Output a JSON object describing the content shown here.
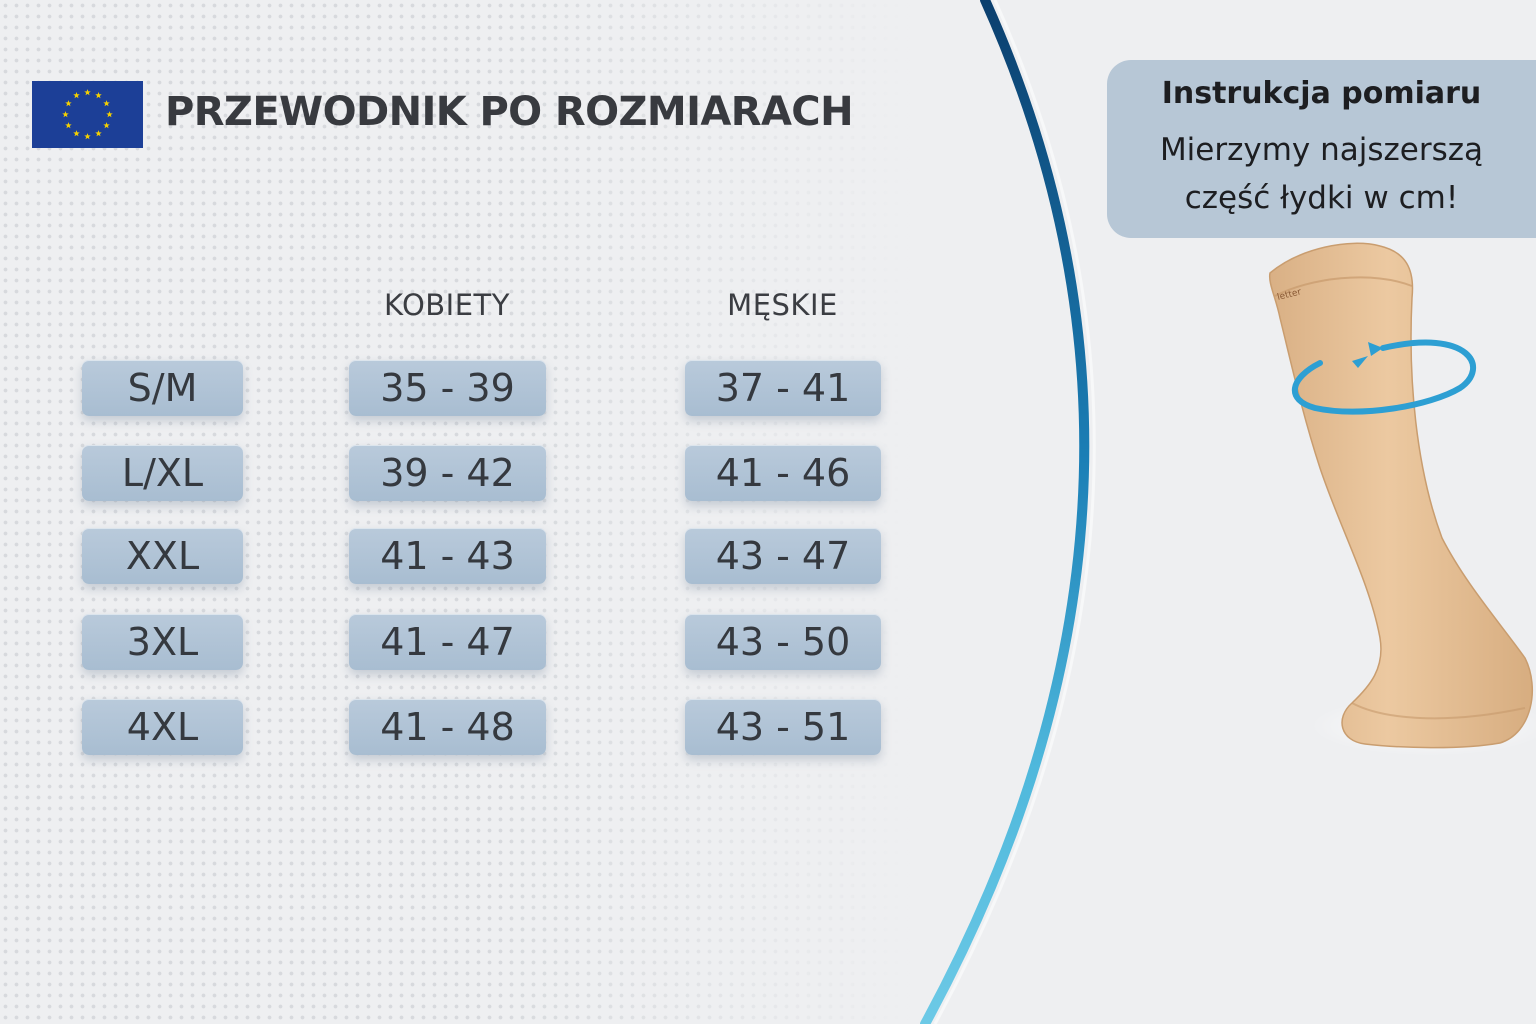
{
  "guide": {
    "title": "PRZEWODNIK PO ROZMIARACH",
    "women_header": "KOBIETY",
    "men_header": "MĘSKIE",
    "rows": [
      {
        "size": "S/M",
        "women": "35 - 39",
        "men": "37 - 41"
      },
      {
        "size": "L/XL",
        "women": "39 - 42",
        "men": "41 - 46"
      },
      {
        "size": "XXL",
        "women": "41 - 43",
        "men": "43 - 47"
      },
      {
        "size": "3XL",
        "women": "41 - 47",
        "men": "43 - 50"
      },
      {
        "size": "4XL",
        "women": "41 - 48",
        "men": "43 - 51"
      }
    ]
  },
  "info_box": {
    "title": "Instrukcja pomiaru",
    "line1": "Mierzymy najszerszą",
    "line2": "część łydki w cm!"
  },
  "colors": {
    "cell_bg": "#b1c4d6",
    "info_bg": "#b7c7d6",
    "flag_blue": "#1c3f97",
    "flag_star": "#f5d100",
    "arc_blue": "#1a86b8",
    "sock": "#e7c29a"
  },
  "icons": {
    "flag": "eu-flag-icon",
    "measure": "circular-arrow-icon"
  }
}
